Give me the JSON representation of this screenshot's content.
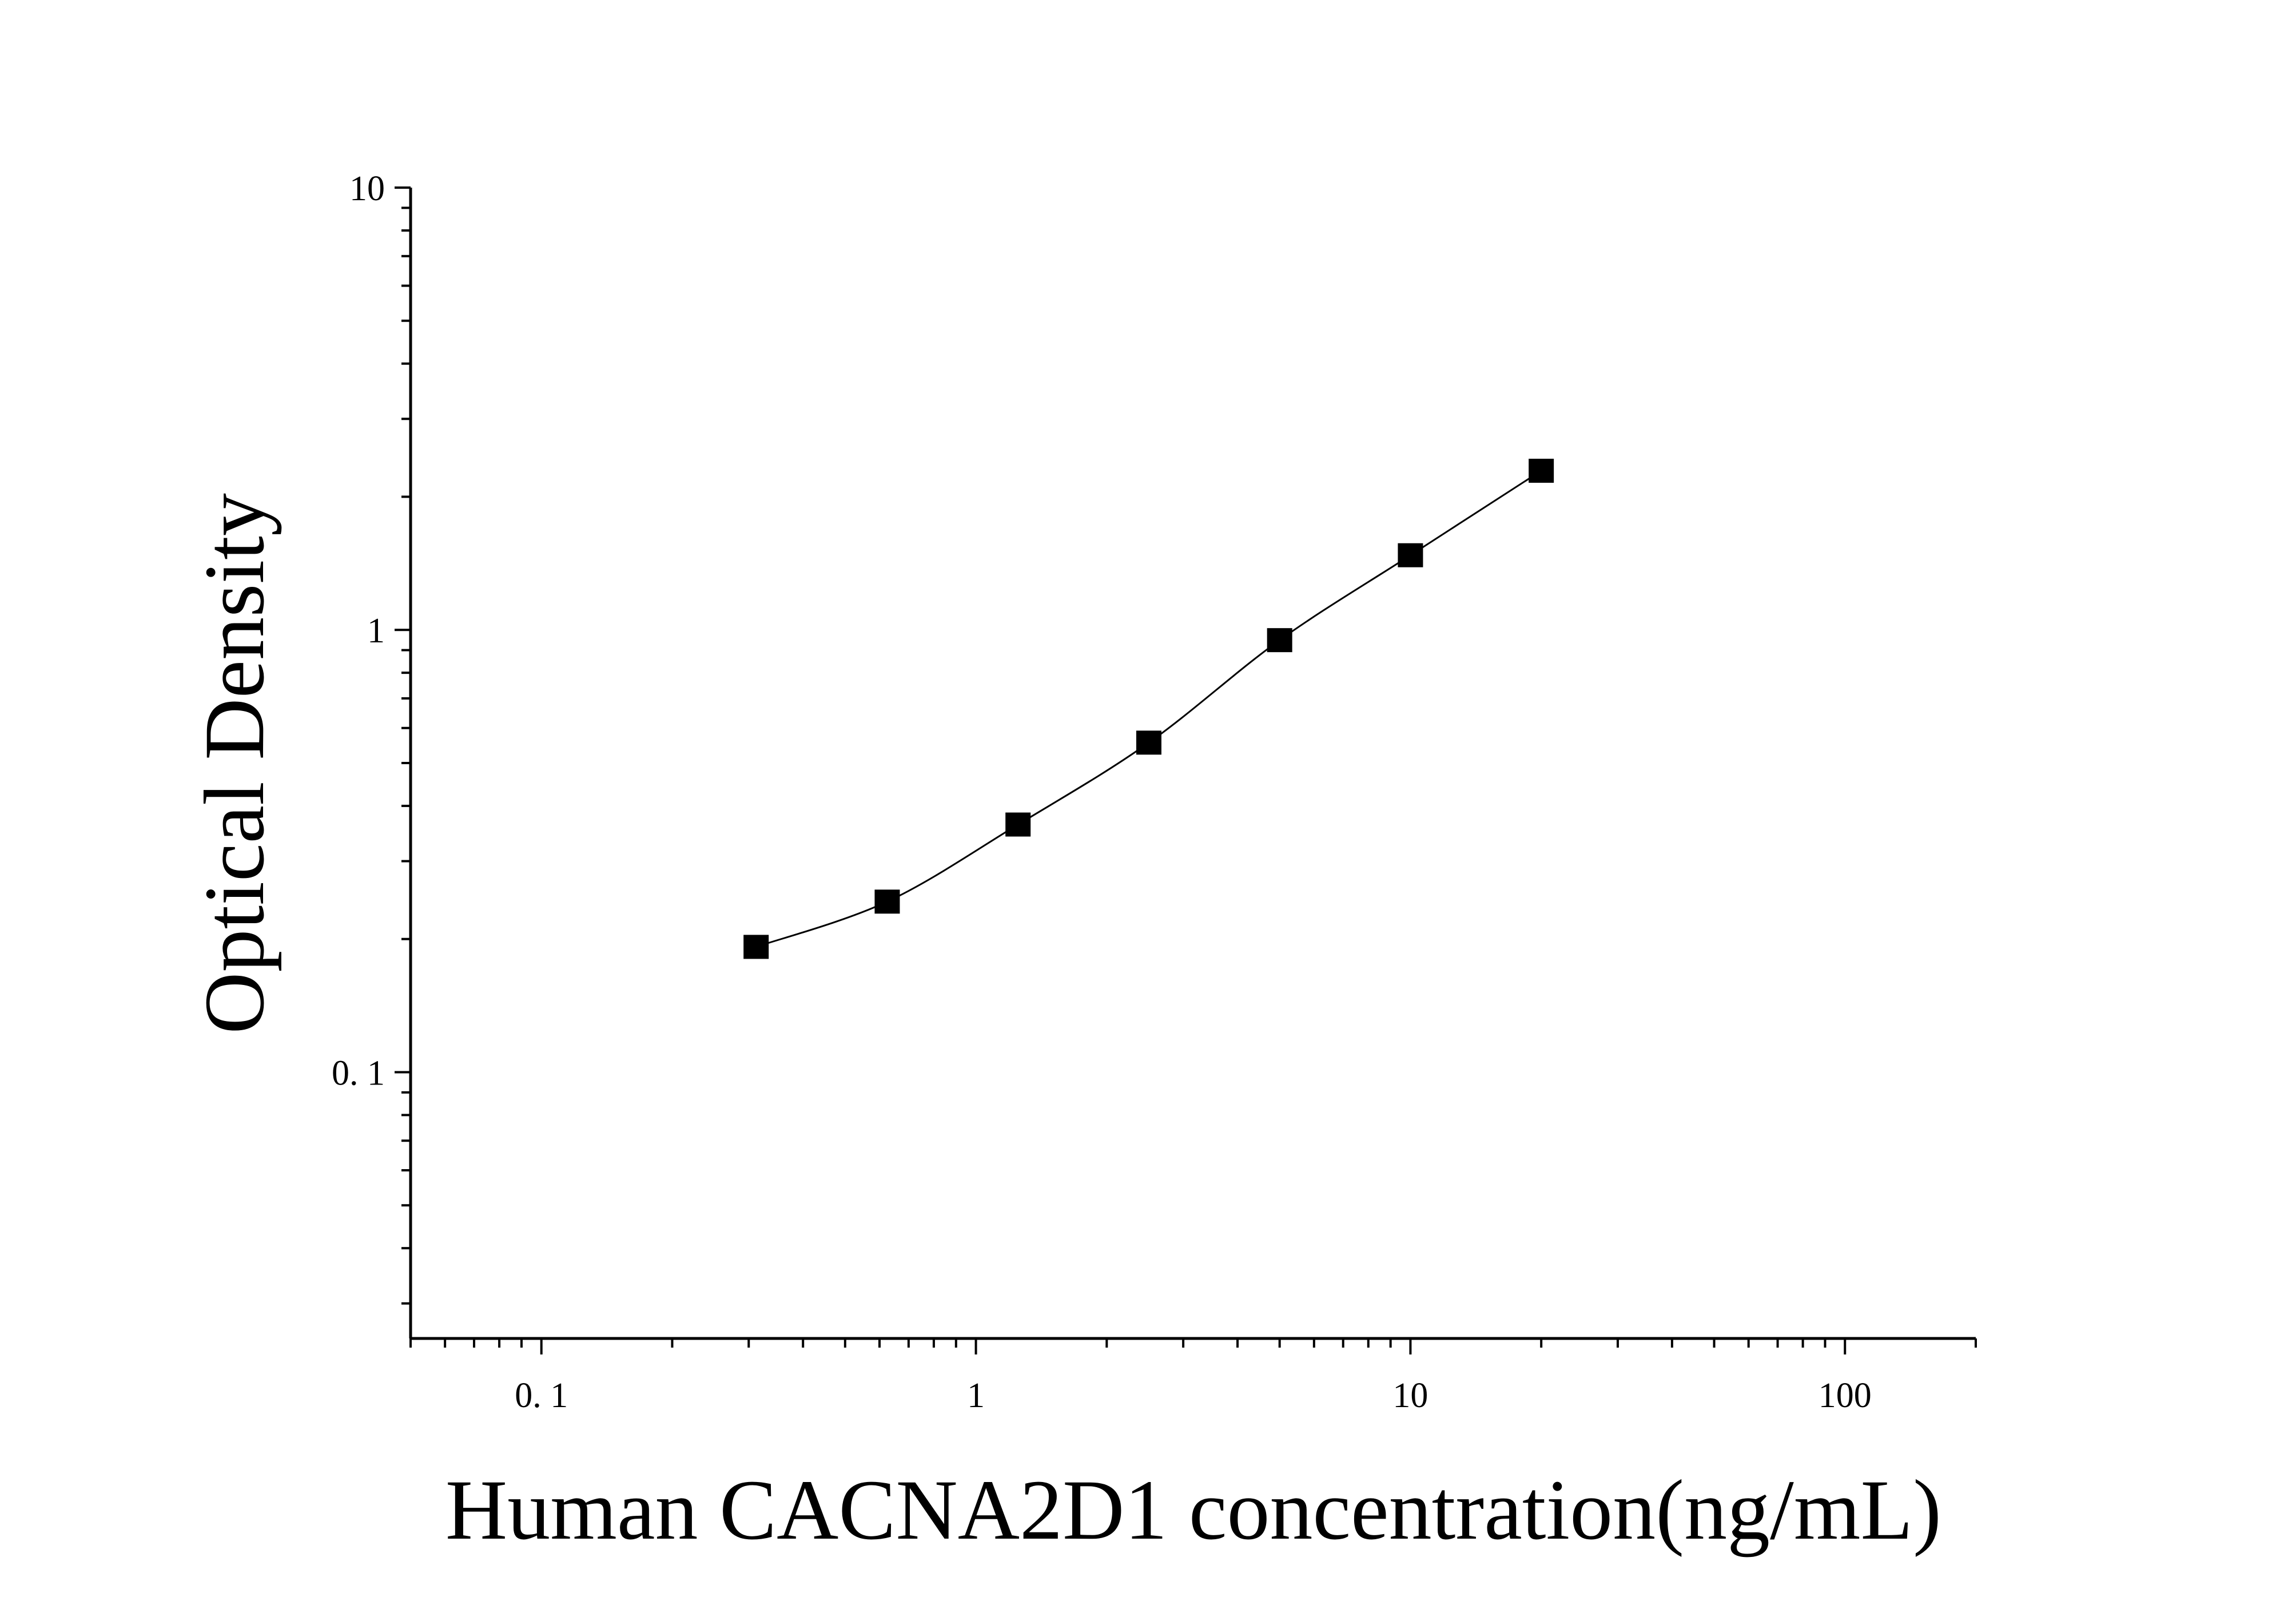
{
  "chart_data": {
    "type": "scatter",
    "title": "",
    "xlabel": "Human CACNA2D1 concentration(ng/mL)",
    "ylabel": "Optical Density",
    "xscale": "log",
    "yscale": "log",
    "xlim": [
      0.05,
      200
    ],
    "ylim": [
      0.025,
      10
    ],
    "xticks": [
      {
        "value": 0.1,
        "label": "0. 1"
      },
      {
        "value": 1,
        "label": "1"
      },
      {
        "value": 10,
        "label": "10"
      },
      {
        "value": 100,
        "label": "100"
      }
    ],
    "yticks": [
      {
        "value": 0.1,
        "label": "0. 1"
      },
      {
        "value": 1,
        "label": "1"
      },
      {
        "value": 10,
        "label": "10"
      }
    ],
    "grid": false,
    "legend": "none",
    "marker": "square",
    "fit_line": "smooth curve",
    "color": "#000000",
    "series": [
      {
        "x": [
          0.312,
          0.625,
          1.25,
          2.5,
          5,
          10,
          20
        ],
        "y": [
          0.192,
          0.243,
          0.363,
          0.556,
          0.948,
          1.475,
          2.29
        ]
      }
    ]
  }
}
